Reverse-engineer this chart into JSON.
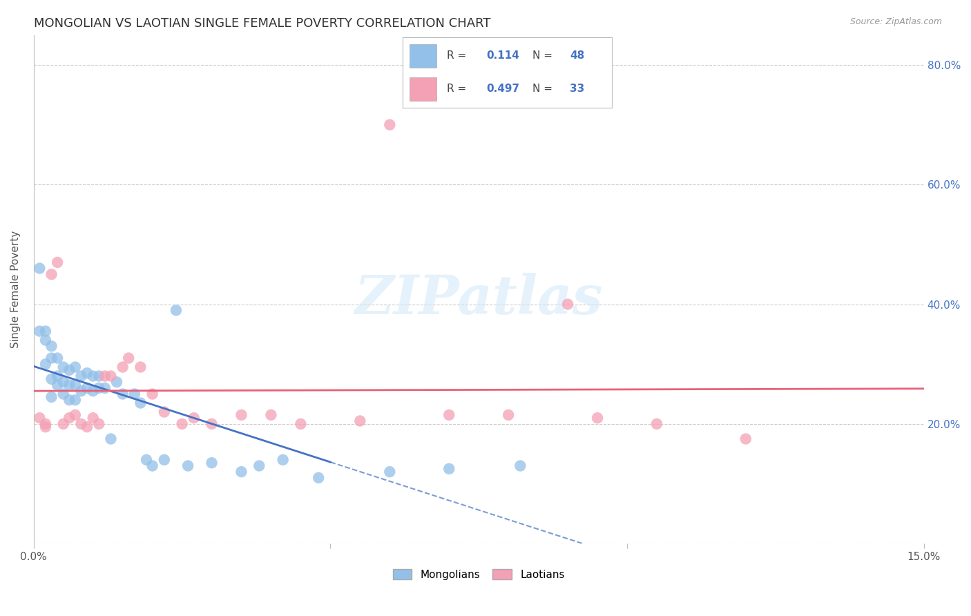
{
  "title": "MONGOLIAN VS LAOTIAN SINGLE FEMALE POVERTY CORRELATION CHART",
  "source": "Source: ZipAtlas.com",
  "ylabel": "Single Female Poverty",
  "watermark": "ZIPatlas",
  "legend_mongolians": "Mongolians",
  "legend_laotians": "Laotians",
  "r_mongolian": 0.114,
  "n_mongolian": 48,
  "r_laotian": 0.497,
  "n_laotian": 33,
  "xlim": [
    0.0,
    0.15
  ],
  "ylim": [
    0.0,
    0.85
  ],
  "mongolian_color": "#92C0E8",
  "laotian_color": "#F4A0B5",
  "mongolian_line_color": "#4472C4",
  "laotian_line_color": "#E8607A",
  "background_color": "#FFFFFF",
  "grid_color": "#CCCCCC",
  "mongolians_x": [
    0.001,
    0.001,
    0.002,
    0.002,
    0.002,
    0.003,
    0.003,
    0.003,
    0.003,
    0.004,
    0.004,
    0.004,
    0.005,
    0.005,
    0.005,
    0.006,
    0.006,
    0.006,
    0.007,
    0.007,
    0.007,
    0.008,
    0.008,
    0.009,
    0.009,
    0.01,
    0.01,
    0.011,
    0.011,
    0.012,
    0.013,
    0.014,
    0.015,
    0.017,
    0.018,
    0.019,
    0.02,
    0.022,
    0.024,
    0.026,
    0.03,
    0.035,
    0.038,
    0.042,
    0.048,
    0.06,
    0.07,
    0.082
  ],
  "mongolians_y": [
    0.46,
    0.355,
    0.355,
    0.34,
    0.3,
    0.33,
    0.31,
    0.275,
    0.245,
    0.31,
    0.28,
    0.265,
    0.295,
    0.27,
    0.25,
    0.29,
    0.265,
    0.24,
    0.295,
    0.265,
    0.24,
    0.28,
    0.255,
    0.285,
    0.26,
    0.28,
    0.255,
    0.28,
    0.26,
    0.26,
    0.175,
    0.27,
    0.25,
    0.25,
    0.235,
    0.14,
    0.13,
    0.14,
    0.39,
    0.13,
    0.135,
    0.12,
    0.13,
    0.14,
    0.11,
    0.12,
    0.125,
    0.13
  ],
  "laotians_x": [
    0.001,
    0.002,
    0.002,
    0.003,
    0.004,
    0.005,
    0.006,
    0.007,
    0.008,
    0.009,
    0.01,
    0.011,
    0.012,
    0.013,
    0.015,
    0.016,
    0.018,
    0.02,
    0.022,
    0.025,
    0.027,
    0.03,
    0.035,
    0.04,
    0.045,
    0.055,
    0.06,
    0.07,
    0.08,
    0.09,
    0.095,
    0.105,
    0.12
  ],
  "laotians_y": [
    0.21,
    0.2,
    0.195,
    0.45,
    0.47,
    0.2,
    0.21,
    0.215,
    0.2,
    0.195,
    0.21,
    0.2,
    0.28,
    0.28,
    0.295,
    0.31,
    0.295,
    0.25,
    0.22,
    0.2,
    0.21,
    0.2,
    0.215,
    0.215,
    0.2,
    0.205,
    0.7,
    0.215,
    0.215,
    0.4,
    0.21,
    0.2,
    0.175
  ]
}
